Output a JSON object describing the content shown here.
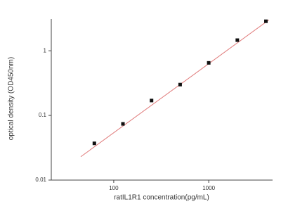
{
  "chart_data": {
    "type": "scatter",
    "x_label": "ratIL1R1  concentration(pg/mL)",
    "y_label": "optical density (OD450nm)",
    "x": [
      62.5,
      125,
      250,
      500,
      1000,
      2000,
      4000
    ],
    "values": [
      0.037,
      0.074,
      0.17,
      0.3,
      0.65,
      1.46,
      2.86
    ],
    "color": "#111111",
    "fit": {
      "x": [
        45,
        4300
      ],
      "values": [
        0.023,
        3.0
      ],
      "color": "#e07a7a"
    },
    "xlim": [
      22,
      4700
    ],
    "ylim": [
      0.01,
      3.1
    ],
    "xticks": [
      100,
      1000
    ],
    "yticks": [
      0.01,
      0.1,
      1
    ],
    "xscale": "log",
    "yscale": "log"
  }
}
